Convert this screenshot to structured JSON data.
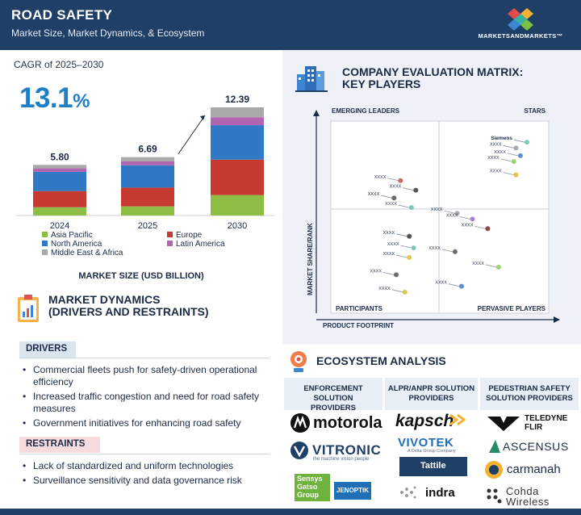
{
  "header": {
    "title": "ROAD SAFETY",
    "subtitle": "Market Size, Market Dynamics, & Ecosystem",
    "brand": "MARKETSANDMARKETS™"
  },
  "cagr": {
    "label": "CAGR of 2025–2030",
    "value": "13.1",
    "unit": "%"
  },
  "chart_data": {
    "type": "bar",
    "stacked": true,
    "categories": [
      "2024",
      "2025",
      "2030"
    ],
    "totals": [
      "5.80",
      "6.69",
      "12.39"
    ],
    "series": [
      {
        "name": "Asia Pacific",
        "color": "#8dbd45",
        "values": [
          0.95,
          1.05,
          2.35
        ]
      },
      {
        "name": "Europe",
        "color": "#c73a32",
        "values": [
          1.85,
          2.15,
          4.05
        ]
      },
      {
        "name": "North America",
        "color": "#2f79c5",
        "values": [
          2.2,
          2.55,
          3.95
        ]
      },
      {
        "name": "Latin America",
        "color": "#b265b1",
        "values": [
          0.4,
          0.45,
          0.9
        ]
      },
      {
        "name": "Middle East & Africa",
        "color": "#a9a9a9",
        "values": [
          0.4,
          0.49,
          1.14
        ]
      }
    ],
    "xlabel": "MARKET SIZE (USD BILLION)",
    "ylim": [
      0,
      12.39
    ],
    "grid": false,
    "legend_position": "bottom"
  },
  "market_dynamics": {
    "title_line1": "MARKET DYNAMICS",
    "title_line2": "(DRIVERS AND RESTRAINTS)",
    "drivers_label": "DRIVERS",
    "drivers": [
      "Commercial fleets push for safety-driven operational efficiency",
      "Increased traffic congestion and need for road safety measures",
      "Government initiatives for enhancing road safety"
    ],
    "restraints_label": "RESTRAINTS",
    "restraints": [
      "Lack of standardized and uniform technologies",
      "Surveillance sensitivity and data governance risk"
    ]
  },
  "matrix": {
    "title_line1": "COMPANY EVALUATION MATRIX:",
    "title_line2": "KEY PLAYERS",
    "quadrants": {
      "top_left": "EMERGING LEADERS",
      "top_right": "STARS",
      "bottom_left": "PARTICIPANTS",
      "bottom_right": "PERVASIVE PLAYERS"
    },
    "y_axis": "MARKET SHARE/RANK",
    "x_axis": "PRODUCT FOOTPRINT",
    "players": [
      {
        "label": "Siemens",
        "color": "#7ec9b8",
        "x": 0.9,
        "y": 0.89
      },
      {
        "label": "XXXX",
        "color": "#a9a9a9",
        "x": 0.85,
        "y": 0.86
      },
      {
        "label": "XXXX",
        "color": "#5c8fd0",
        "x": 0.87,
        "y": 0.82
      },
      {
        "label": "XXXX",
        "color": "#9fd26a",
        "x": 0.84,
        "y": 0.79
      },
      {
        "label": "XXXX",
        "color": "#e6c447",
        "x": 0.85,
        "y": 0.72
      },
      {
        "label": "XXXX",
        "color": "#c96a6a",
        "x": 0.32,
        "y": 0.69
      },
      {
        "label": "XXXX",
        "color": "#555555",
        "x": 0.39,
        "y": 0.64
      },
      {
        "label": "XXXX",
        "color": "#6b6b6b",
        "x": 0.29,
        "y": 0.6
      },
      {
        "label": "XXXX",
        "color": "#7ec9b8",
        "x": 0.37,
        "y": 0.55
      },
      {
        "label": "XXXX",
        "color": "#a9a9a9",
        "x": 0.58,
        "y": 0.52
      },
      {
        "label": "XXXX",
        "color": "#b07fd0",
        "x": 0.65,
        "y": 0.49
      },
      {
        "label": "XXXX",
        "color": "#8b4a4a",
        "x": 0.72,
        "y": 0.44
      },
      {
        "label": "XXXX",
        "color": "#555555",
        "x": 0.36,
        "y": 0.4
      },
      {
        "label": "XXXX",
        "color": "#7ec9b8",
        "x": 0.38,
        "y": 0.34
      },
      {
        "label": "XXXX",
        "color": "#e6c447",
        "x": 0.36,
        "y": 0.29
      },
      {
        "label": "XXXX",
        "color": "#6b6b6b",
        "x": 0.57,
        "y": 0.32
      },
      {
        "label": "XXXX",
        "color": "#9fd26a",
        "x": 0.77,
        "y": 0.24
      },
      {
        "label": "XXXX",
        "color": "#6b6b6b",
        "x": 0.3,
        "y": 0.2
      },
      {
        "label": "XXXX",
        "color": "#5c8fd0",
        "x": 0.6,
        "y": 0.14
      },
      {
        "label": "XXXX",
        "color": "#e6c447",
        "x": 0.34,
        "y": 0.11
      }
    ]
  },
  "ecosystem": {
    "title": "ECOSYSTEM ANALYSIS",
    "columns": [
      {
        "line1": "ENFORCEMENT SOLUTION",
        "line2": "PROVIDERS",
        "logos": [
          "motorola",
          "VITRONIC",
          "the machine vision people",
          "Sensys",
          "Gatso",
          "Group",
          "JENOPTIK"
        ]
      },
      {
        "line1": "ALPR/ANPR SOLUTION",
        "line2": "PROVIDERS",
        "logos": [
          "kapsch",
          "VIVOTEK",
          "A Delta Group Company",
          "Tattile",
          "indra"
        ]
      },
      {
        "line1": "PEDESTRIAN SAFETY",
        "line2": "SOLUTION PROVIDERS",
        "logos": [
          "TELEDYNE",
          "FLIR",
          "ASCENSUS",
          "carmanah",
          "Cohda",
          "Wireless"
        ]
      }
    ]
  },
  "colors": {
    "header_bg": "#1f3f66",
    "accent": "#1f7fc6",
    "panel_bg": "#eef2f8"
  }
}
